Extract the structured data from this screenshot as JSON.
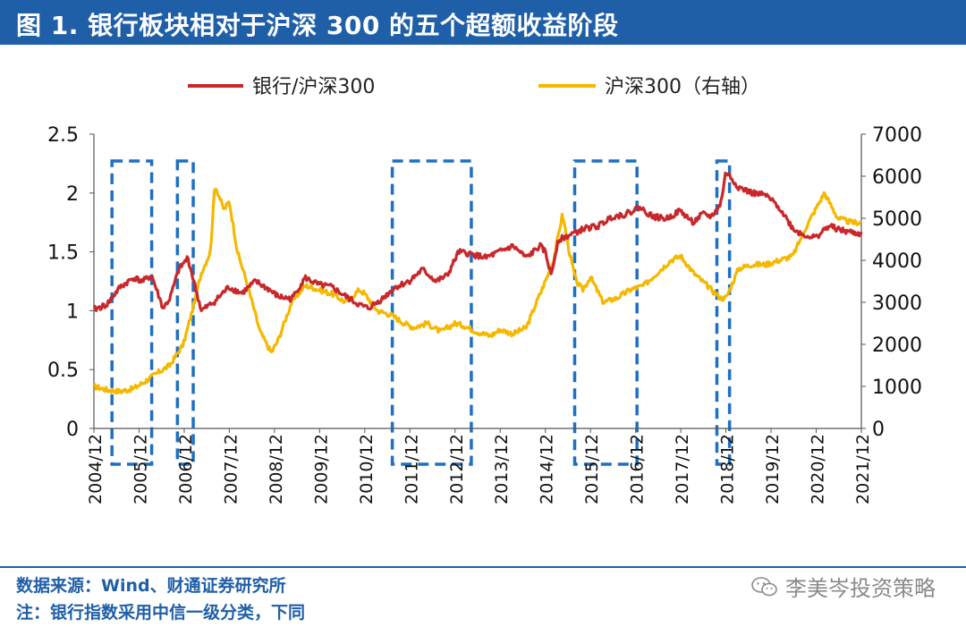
{
  "figure": {
    "title": "图 1. 银行板块相对于沪深 300 的五个超额收益阶段"
  },
  "footer": {
    "source": "数据来源：Wind、财通证券研究所",
    "note": "注：银行指数采用中信一级分类，下同",
    "watermark": "李美岑投资策略",
    "watermark_icon": "wechat-icon"
  },
  "colors": {
    "title_bg": "#1f5fa8",
    "bank_series": "#c8282b",
    "csi300_series": "#f5b800",
    "highlight_box": "#1f6fc2"
  },
  "chart_data": {
    "type": "line",
    "title": "",
    "x_unit": "year",
    "xlim": [
      2004.92,
      2021.92
    ],
    "x_ticks": [
      2004.92,
      2005.92,
      2006.92,
      2007.92,
      2008.92,
      2009.92,
      2010.92,
      2011.92,
      2012.92,
      2013.92,
      2014.92,
      2015.92,
      2016.92,
      2017.92,
      2018.92,
      2019.92,
      2020.92,
      2021.92
    ],
    "x_tick_labels": [
      "2004/12",
      "2005/12",
      "2006/12",
      "2007/12",
      "2008/12",
      "2009/12",
      "2010/12",
      "2011/12",
      "2012/12",
      "2013/12",
      "2014/12",
      "2015/12",
      "2016/12",
      "2017/12",
      "2018/12",
      "2019/12",
      "2020/12",
      "2021/12"
    ],
    "y_left": {
      "label": "",
      "lim": [
        0,
        2.5
      ],
      "ticks": [
        0,
        0.5,
        1,
        1.5,
        2,
        2.5
      ],
      "tick_labels": [
        "0",
        "0.5",
        "1",
        "1.5",
        "2",
        "2.5"
      ]
    },
    "y_right": {
      "label": "",
      "lim": [
        0,
        7000
      ],
      "ticks": [
        0,
        1000,
        2000,
        3000,
        4000,
        5000,
        6000,
        7000
      ],
      "tick_labels": [
        "0",
        "1000",
        "2000",
        "3000",
        "4000",
        "5000",
        "6000",
        "7000"
      ]
    },
    "legend": {
      "placement": "top-center"
    },
    "series": [
      {
        "name": "银行/沪深300",
        "axis": "left",
        "color": "#c8282b",
        "x": [
          2004.92,
          2005.2,
          2005.5,
          2005.8,
          2006.0,
          2006.2,
          2006.45,
          2006.6,
          2006.8,
          2007.0,
          2007.3,
          2007.6,
          2007.9,
          2008.2,
          2008.5,
          2008.8,
          2009.0,
          2009.3,
          2009.6,
          2009.9,
          2010.2,
          2010.5,
          2010.8,
          2011.0,
          2011.3,
          2011.6,
          2011.9,
          2012.2,
          2012.5,
          2012.75,
          2013.0,
          2013.3,
          2013.6,
          2013.9,
          2014.2,
          2014.5,
          2014.8,
          2014.92,
          2015.05,
          2015.2,
          2015.5,
          2015.8,
          2016.1,
          2016.4,
          2016.7,
          2017.0,
          2017.3,
          2017.6,
          2017.9,
          2018.2,
          2018.4,
          2018.6,
          2018.8,
          2018.92,
          2019.2,
          2019.5,
          2019.8,
          2020.1,
          2020.4,
          2020.6,
          2020.9,
          2021.2,
          2021.5,
          2021.92
        ],
        "values": [
          1.01,
          1.05,
          1.2,
          1.28,
          1.25,
          1.3,
          1.02,
          1.1,
          1.35,
          1.45,
          1.0,
          1.08,
          1.2,
          1.15,
          1.25,
          1.18,
          1.12,
          1.1,
          1.28,
          1.22,
          1.2,
          1.12,
          1.05,
          1.02,
          1.1,
          1.2,
          1.25,
          1.35,
          1.25,
          1.3,
          1.5,
          1.48,
          1.45,
          1.5,
          1.55,
          1.45,
          1.55,
          1.5,
          1.3,
          1.6,
          1.65,
          1.7,
          1.72,
          1.8,
          1.82,
          1.88,
          1.8,
          1.78,
          1.85,
          1.75,
          1.82,
          1.8,
          1.9,
          2.18,
          2.05,
          2.0,
          1.98,
          1.88,
          1.7,
          1.65,
          1.62,
          1.72,
          1.68,
          1.65
        ]
      },
      {
        "name": "沪深300（右轴）",
        "axis": "right",
        "color": "#f5b800",
        "x": [
          2004.92,
          2005.2,
          2005.5,
          2005.8,
          2006.0,
          2006.3,
          2006.6,
          2006.9,
          2007.1,
          2007.3,
          2007.5,
          2007.6,
          2007.8,
          2007.92,
          2008.1,
          2008.3,
          2008.6,
          2008.85,
          2009.0,
          2009.3,
          2009.6,
          2009.9,
          2010.2,
          2010.5,
          2010.8,
          2010.92,
          2011.2,
          2011.5,
          2011.8,
          2012.0,
          2012.3,
          2012.6,
          2012.92,
          2013.1,
          2013.4,
          2013.7,
          2013.92,
          2014.2,
          2014.5,
          2014.8,
          2014.92,
          2015.1,
          2015.3,
          2015.45,
          2015.6,
          2015.75,
          2015.92,
          2016.2,
          2016.5,
          2016.8,
          2017.1,
          2017.4,
          2017.7,
          2017.92,
          2018.2,
          2018.5,
          2018.8,
          2018.92,
          2019.2,
          2019.5,
          2019.8,
          2020.1,
          2020.4,
          2020.7,
          2020.9,
          2021.1,
          2021.4,
          2021.7,
          2021.92
        ],
        "values": [
          1000,
          920,
          880,
          950,
          1080,
          1300,
          1500,
          2000,
          2800,
          3700,
          4200,
          5800,
          5200,
          5400,
          4200,
          3500,
          2300,
          1800,
          2100,
          3000,
          3400,
          3300,
          3200,
          3000,
          3300,
          3200,
          2800,
          2700,
          2500,
          2400,
          2500,
          2300,
          2500,
          2450,
          2300,
          2200,
          2350,
          2250,
          2400,
          3200,
          3500,
          4000,
          5100,
          4200,
          3500,
          3300,
          3600,
          3000,
          3100,
          3300,
          3400,
          3700,
          4000,
          4100,
          3700,
          3400,
          3100,
          3100,
          3800,
          3900,
          3900,
          4000,
          4100,
          4800,
          5200,
          5600,
          5000,
          4900,
          4900
        ]
      }
    ],
    "highlight_periods": [
      {
        "start": 2005.32,
        "end": 2006.2
      },
      {
        "start": 2006.77,
        "end": 2007.12
      },
      {
        "start": 2011.53,
        "end": 2013.28
      },
      {
        "start": 2015.57,
        "end": 2016.95
      },
      {
        "start": 2018.72,
        "end": 2019.0
      }
    ]
  }
}
